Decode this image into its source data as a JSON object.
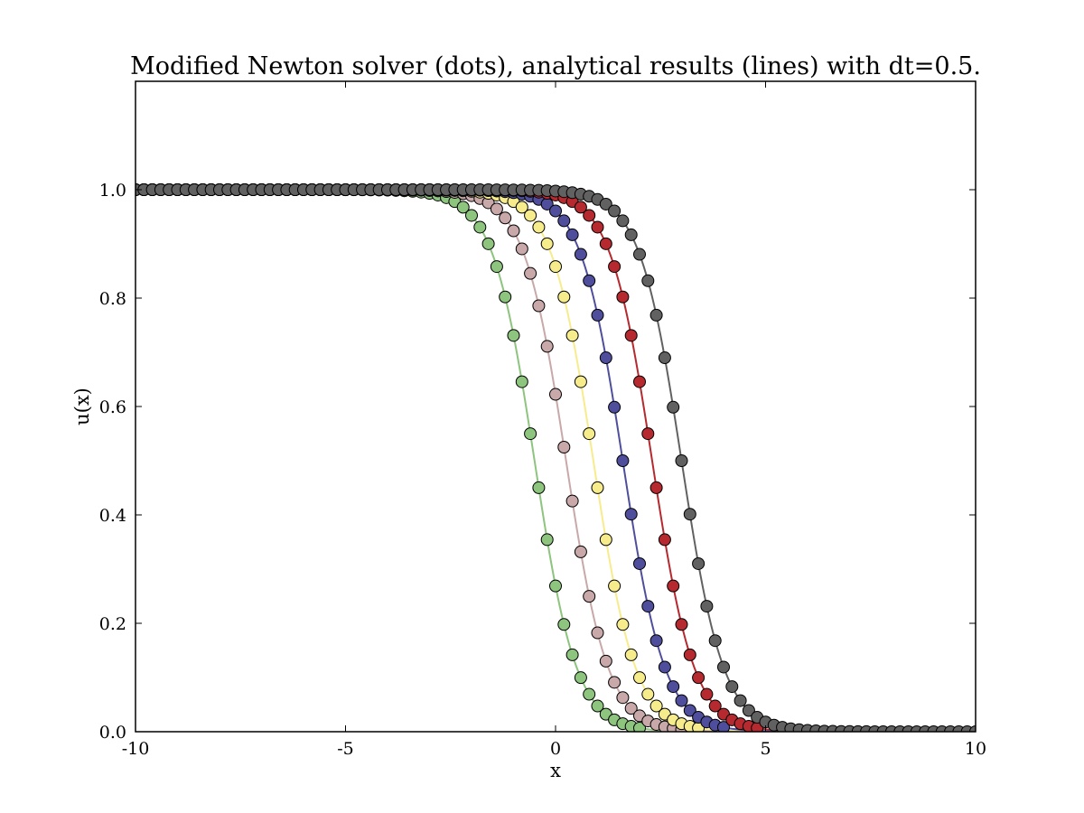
{
  "chart_data": {
    "type": "line",
    "title": "Modified Newton solver (dots), analytical results (lines) with dt=0.5.",
    "xlabel": "x",
    "ylabel": "u(x)",
    "xlim": [
      -10,
      10
    ],
    "ylim": [
      0,
      1.2
    ],
    "x_ticks": [
      "-10",
      "-5",
      "0",
      "5",
      "10"
    ],
    "y_ticks": [
      "0.0",
      "0.2",
      "0.4",
      "0.6",
      "0.8",
      "1.0"
    ],
    "grid": false,
    "legend": "none",
    "x_step": 0.2,
    "model": "u(x) = (1 - tanh(k * (x - c))) / 2",
    "series": [
      {
        "color": "#8dc47e",
        "center": -0.5,
        "steepness": 1.0,
        "x_end": 2.0
      },
      {
        "color": "#c8a8a8",
        "center": 0.25,
        "steepness": 1.0,
        "x_end": 3.0
      },
      {
        "color": "#f7ec8c",
        "center": 0.9,
        "steepness": 1.0,
        "x_end": 3.4
      },
      {
        "color": "#4e4e9c",
        "center": 1.6,
        "steepness": 1.0,
        "x_end": 4.0
      },
      {
        "color": "#b5292f",
        "center": 2.3,
        "steepness": 1.0,
        "x_end": 4.8
      },
      {
        "color": "#616161",
        "center": 3.0,
        "steepness": 1.0,
        "x_end": 10.0
      }
    ]
  }
}
